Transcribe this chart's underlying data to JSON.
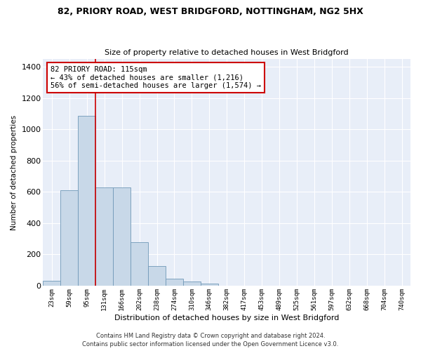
{
  "title": "82, PRIORY ROAD, WEST BRIDGFORD, NOTTINGHAM, NG2 5HX",
  "subtitle": "Size of property relative to detached houses in West Bridgford",
  "xlabel": "Distribution of detached houses by size in West Bridgford",
  "ylabel": "Number of detached properties",
  "bar_color": "#c8d8e8",
  "bar_edge_color": "#7098b8",
  "background_color": "#e8eef8",
  "grid_color": "#ffffff",
  "bar_values": [
    30,
    610,
    1085,
    630,
    630,
    280,
    125,
    45,
    25,
    15,
    0,
    0,
    0,
    0,
    0,
    0,
    0,
    0,
    0,
    0,
    0
  ],
  "categories": [
    "23sqm",
    "59sqm",
    "95sqm",
    "131sqm",
    "166sqm",
    "202sqm",
    "238sqm",
    "274sqm",
    "310sqm",
    "346sqm",
    "382sqm",
    "417sqm",
    "453sqm",
    "489sqm",
    "525sqm",
    "561sqm",
    "597sqm",
    "632sqm",
    "668sqm",
    "704sqm",
    "740sqm"
  ],
  "ylim": [
    0,
    1450
  ],
  "yticks": [
    0,
    200,
    400,
    600,
    800,
    1000,
    1200,
    1400
  ],
  "annotation_title": "82 PRIORY ROAD: 115sqm",
  "annotation_line1": "← 43% of detached houses are smaller (1,216)",
  "annotation_line2": "56% of semi-detached houses are larger (1,574) →",
  "annotation_box_color": "#ffffff",
  "annotation_box_edge_color": "#cc0000",
  "red_line_x": 2.5,
  "footnote1": "Contains HM Land Registry data © Crown copyright and database right 2024.",
  "footnote2": "Contains public sector information licensed under the Open Government Licence v3.0."
}
